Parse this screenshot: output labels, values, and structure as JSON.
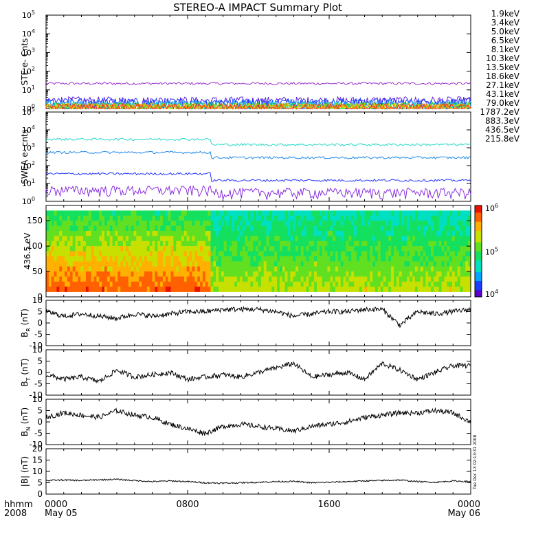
{
  "title": "STEREO-A IMPACT Summary Plot",
  "time_axis": {
    "row1_label": "hhmm",
    "row2_label": "2008",
    "ticks": [
      {
        "t": 0,
        "top": "0000",
        "bottom": "May 05"
      },
      {
        "t": 8,
        "top": "0800",
        "bottom": ""
      },
      {
        "t": 16,
        "top": "1600",
        "bottom": ""
      },
      {
        "t": 24,
        "top": "0000",
        "bottom": "May 06"
      }
    ],
    "range_hours": [
      0,
      24
    ]
  },
  "side_note": "Tue Dec 13 02:13:31 2008",
  "colors": {
    "black": "#000000"
  },
  "chart_data": [
    {
      "type": "line",
      "panel": "ste",
      "ylabel": "STE e- Cnts",
      "yscale": "log",
      "ylim": [
        1,
        100000
      ],
      "ytick_exponents": [
        0,
        1,
        2,
        3,
        4,
        5
      ],
      "legend_placement": "right",
      "series": [
        {
          "name": "1.9keV",
          "color": "#9a2fd0",
          "level": 22
        },
        {
          "name": "3.4keV",
          "color": "#5a1fd8",
          "level": 2.4
        },
        {
          "name": "5.0keV",
          "color": "#2230ff",
          "level": 2.0
        },
        {
          "name": "6.5keV",
          "color": "#1a6cff",
          "level": 1.7
        },
        {
          "name": "8.1keV",
          "color": "#19c8ff",
          "level": 1.4
        },
        {
          "name": "10.3keV",
          "color": "#14d6a0",
          "level": 1.25
        },
        {
          "name": "13.5keV",
          "color": "#22d020",
          "level": 1.15
        },
        {
          "name": "18.6keV",
          "color": "#a8d800",
          "level": 1.1
        },
        {
          "name": "27.1keV",
          "color": "#e8d000",
          "level": 1.05
        },
        {
          "name": "43.1keV",
          "color": "#ff8a00",
          "level": 1.02
        },
        {
          "name": "79.0keV",
          "color": "#ff2a1a",
          "level": 1.01
        }
      ]
    },
    {
      "type": "line",
      "panel": "swea",
      "ylabel": "SWEA e- cnts",
      "yscale": "log",
      "ylim": [
        1,
        100000
      ],
      "ytick_exponents": [
        0,
        1,
        2,
        3,
        4,
        5
      ],
      "legend_placement": "right",
      "series": [
        {
          "name": "1787.2eV",
          "color": "#8a2ee0",
          "before": 4,
          "after": 3
        },
        {
          "name": "883.3eV",
          "color": "#2233ff",
          "before": 35,
          "after": 15
        },
        {
          "name": "436.5eV",
          "color": "#1c88e8",
          "before": 550,
          "after": 280
        },
        {
          "name": "215.8eV",
          "color": "#24d8c8",
          "before": 3000,
          "after": 1500
        }
      ],
      "transition_hour": 9.3
    },
    {
      "type": "heatmap",
      "panel": "pad",
      "ylabel": "436.5 eV",
      "ylim": [
        0,
        180
      ],
      "yticks": [
        0,
        50,
        100,
        150
      ],
      "colorbar": {
        "scale": "log",
        "range": [
          10000,
          1000000
        ],
        "tick_exponents": [
          4,
          5,
          6
        ]
      },
      "transition_hour": 9.3
    },
    {
      "type": "line",
      "panel": "br",
      "ylabel_main": "B",
      "ylabel_sub": "R",
      "ylabel_unit": "(nT)",
      "ylim": [
        -10,
        10
      ],
      "yticks": [
        -10,
        -5,
        0,
        5,
        10
      ],
      "x": [
        0,
        1,
        2,
        3,
        4,
        5,
        6,
        7,
        8,
        9,
        10,
        11,
        12,
        13,
        14,
        15,
        16,
        17,
        18,
        19,
        20,
        21,
        22,
        23,
        24
      ],
      "values": [
        5,
        3,
        4,
        3,
        2,
        4,
        3,
        4,
        5,
        5,
        6,
        6,
        6,
        5,
        3,
        4,
        5,
        5,
        6,
        6,
        -1,
        5,
        4,
        5,
        6
      ]
    },
    {
      "type": "line",
      "panel": "bt",
      "ylabel_main": "B",
      "ylabel_sub": "T",
      "ylabel_unit": "(nT)",
      "ylim": [
        -10,
        10
      ],
      "yticks": [
        -10,
        -5,
        0,
        5,
        10
      ],
      "x": [
        0,
        1,
        2,
        3,
        4,
        5,
        6,
        7,
        8,
        9,
        10,
        11,
        12,
        13,
        14,
        15,
        16,
        17,
        18,
        19,
        20,
        21,
        22,
        23,
        24
      ],
      "values": [
        -1,
        -3,
        -2,
        -4,
        1,
        -2,
        -1,
        0,
        -3,
        -2,
        -1,
        -2,
        0,
        2,
        4,
        -2,
        -1,
        0,
        -3,
        4,
        1,
        -3,
        0,
        3,
        3
      ]
    },
    {
      "type": "line",
      "panel": "bn",
      "ylabel_main": "B",
      "ylabel_sub": "N",
      "ylabel_unit": "(nT)",
      "ylim": [
        -10,
        10
      ],
      "yticks": [
        -10,
        -5,
        0,
        5,
        10
      ],
      "x": [
        0,
        1,
        2,
        3,
        4,
        5,
        6,
        7,
        8,
        9,
        10,
        11,
        12,
        13,
        14,
        15,
        16,
        17,
        18,
        19,
        20,
        21,
        22,
        23,
        24
      ],
      "values": [
        2,
        4,
        3,
        2,
        5,
        3,
        2,
        -1,
        -3,
        -5,
        -2,
        -1,
        -2,
        -3,
        -4,
        -2,
        -1,
        0,
        2,
        3,
        4,
        4,
        5,
        4,
        0
      ]
    },
    {
      "type": "line",
      "panel": "bmag",
      "ylabel_main": "|B| (nT)",
      "ylim": [
        0,
        20
      ],
      "yticks": [
        0,
        5,
        10,
        15,
        20
      ],
      "x": [
        0,
        1,
        2,
        3,
        4,
        5,
        6,
        7,
        8,
        9,
        10,
        11,
        12,
        13,
        14,
        15,
        16,
        17,
        18,
        19,
        20,
        21,
        22,
        23,
        24
      ],
      "values": [
        6,
        6.2,
        6,
        6.3,
        6.5,
        6,
        5.5,
        5.8,
        5.5,
        5,
        4.8,
        5,
        5.2,
        5.5,
        5.6,
        5,
        5.2,
        5.5,
        5.8,
        6,
        6.2,
        5.5,
        5.2,
        5.8,
        5.5
      ]
    }
  ]
}
